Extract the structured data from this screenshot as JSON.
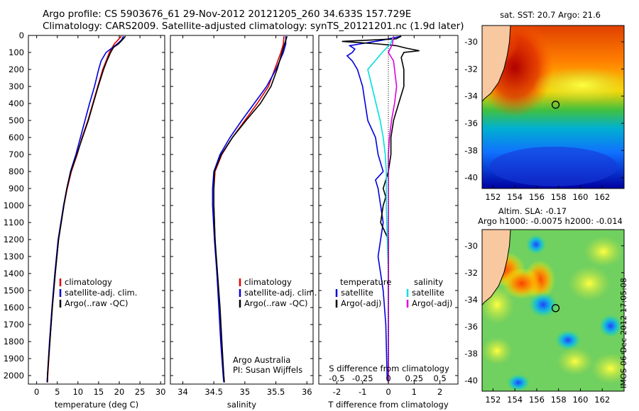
{
  "header": {
    "line1": "Argo profile: CS 5903676_61 29-Nov-2012 20121205_260 34.633S 157.729E",
    "line2": "Climatology: CARS2009. Satellite-adjusted climatology: synTS_20121201.nc (1.9d later)"
  },
  "side_label": "IMOS 06-Dec-2012 17:05:08",
  "colors": {
    "clim": "#e00000",
    "sat": "#0000e0",
    "argo": "#000000",
    "cyan": "#00e0e0",
    "magenta": "#e000e0"
  },
  "chart_data": [
    {
      "type": "line",
      "id": "temp",
      "xlabel": "temperature (deg C)",
      "xlim": [
        -2,
        31
      ],
      "ylim": [
        0,
        2050
      ],
      "xticks": [
        "0",
        "5",
        "10",
        "15",
        "20",
        "25",
        "30"
      ],
      "yticks": [
        "0",
        "100",
        "200",
        "300",
        "400",
        "500",
        "600",
        "700",
        "800",
        "900",
        "1000",
        "1100",
        "1200",
        "1300",
        "1400",
        "1500",
        "1600",
        "1700",
        "1800",
        "1900",
        "2000"
      ],
      "legend": [
        "climatology",
        "satellite-adj. clim.",
        "Argo(..raw -QC)"
      ],
      "series": [
        {
          "name": "climatology",
          "color": "clim",
          "depth": [
            5,
            50,
            100,
            150,
            200,
            300,
            400,
            500,
            600,
            700,
            800,
            900,
            1000,
            1200,
            1400,
            1600,
            1800,
            2000,
            2040
          ],
          "values": [
            20.5,
            18.8,
            17.6,
            16.8,
            16.0,
            14.8,
            13.6,
            12.4,
            11.0,
            9.8,
            8.4,
            7.4,
            6.6,
            5.3,
            4.5,
            3.8,
            3.2,
            2.7,
            2.6
          ]
        },
        {
          "name": "satellite-adj. clim.",
          "color": "sat",
          "depth": [
            5,
            25,
            50,
            100,
            150,
            200,
            300,
            400,
            500,
            600,
            700,
            800,
            900,
            1000,
            1200,
            1400,
            1600,
            1800,
            2000,
            2040
          ],
          "values": [
            21.0,
            20.6,
            19.5,
            16.8,
            15.6,
            15.0,
            14.0,
            12.8,
            11.7,
            10.6,
            9.5,
            8.2,
            7.3,
            6.5,
            5.2,
            4.4,
            3.7,
            3.1,
            2.6,
            2.5
          ]
        },
        {
          "name": "Argo(..raw -QC)",
          "color": "argo",
          "depth": [
            5,
            30,
            50,
            70,
            100,
            150,
            200,
            300,
            400,
            500,
            600,
            700,
            800,
            900,
            1000,
            1200,
            1400,
            1600,
            1800,
            2000,
            2040
          ],
          "values": [
            21.5,
            20.6,
            19.8,
            18.6,
            17.9,
            17.0,
            16.2,
            14.9,
            13.7,
            12.5,
            11.1,
            9.7,
            8.3,
            7.3,
            6.6,
            5.3,
            4.5,
            3.8,
            3.2,
            2.6,
            2.6
          ]
        }
      ]
    },
    {
      "type": "line",
      "id": "sal",
      "xlabel": "salinity",
      "xlim": [
        33.8,
        36.1
      ],
      "ylim": [
        0,
        2050
      ],
      "xticks": [
        "34",
        "34.5",
        "35",
        "35.5",
        "36"
      ],
      "legend": [
        "climatology",
        "satellite-adj. clim.",
        "Argo(..raw -QC)"
      ],
      "note": [
        "Argo Australia",
        "PI: Susan Wijffels"
      ],
      "series": [
        {
          "name": "climatology",
          "color": "clim",
          "depth": [
            5,
            50,
            100,
            200,
            300,
            400,
            500,
            600,
            700,
            800,
            900,
            1000,
            1200,
            1400,
            1600,
            1800,
            2000,
            2040
          ],
          "values": [
            35.63,
            35.62,
            35.58,
            35.48,
            35.38,
            35.2,
            35.0,
            34.8,
            34.63,
            34.52,
            34.5,
            34.5,
            34.52,
            34.55,
            34.59,
            34.62,
            34.66,
            34.67
          ]
        },
        {
          "name": "satellite-adj. clim.",
          "color": "sat",
          "depth": [
            5,
            50,
            100,
            200,
            300,
            400,
            500,
            600,
            700,
            800,
            900,
            1000,
            1200,
            1400,
            1600,
            1800,
            2000,
            2040
          ],
          "values": [
            35.66,
            35.66,
            35.62,
            35.5,
            35.35,
            35.15,
            34.95,
            34.76,
            34.6,
            34.5,
            34.48,
            34.48,
            34.51,
            34.55,
            34.58,
            34.61,
            34.65,
            34.66
          ]
        },
        {
          "name": "Argo(..raw -QC)",
          "color": "argo",
          "depth": [
            5,
            50,
            100,
            200,
            300,
            400,
            500,
            600,
            700,
            800,
            900,
            1000,
            1200,
            1400,
            1600,
            1800,
            2000,
            2040
          ],
          "values": [
            35.68,
            35.64,
            35.6,
            35.52,
            35.42,
            35.25,
            35.02,
            34.8,
            34.62,
            34.51,
            34.5,
            34.5,
            34.52,
            34.56,
            34.6,
            34.63,
            34.66,
            34.67
          ]
        }
      ]
    },
    {
      "type": "line",
      "id": "diff",
      "xlabel": "T difference from climatology",
      "xlabel_top": "S difference from climatology",
      "xlim": [
        -2.7,
        2.7
      ],
      "ylim": [
        0,
        2050
      ],
      "xticks": [
        "-2",
        "-1",
        "0",
        "1",
        "2"
      ],
      "xticks_s": [
        "-0.5",
        "-0.25",
        "0",
        "0.25",
        "0.5"
      ],
      "legend_t": {
        "title": "temperature",
        "items": [
          "satellite",
          "Argo(-adj)"
        ]
      },
      "legend_s": {
        "title": "salinity",
        "items": [
          "satellite",
          "Argo(-adj)"
        ]
      },
      "series": [
        {
          "name": "T satellite",
          "color": "sat",
          "depth": [
            5,
            30,
            60,
            80,
            100,
            120,
            150,
            200,
            300,
            400,
            500,
            600,
            700,
            800,
            850,
            900,
            1000,
            1100,
            1200,
            1300,
            1500,
            1700,
            2000,
            2040
          ],
          "values": [
            0.5,
            -0.3,
            -1.5,
            -1.3,
            -1.4,
            -1.6,
            -1.4,
            -1.2,
            -1.0,
            -0.9,
            -0.8,
            -0.5,
            -0.4,
            -0.2,
            -0.5,
            -0.4,
            -0.3,
            -0.2,
            -0.3,
            -0.4,
            -0.2,
            -0.1,
            -0.05,
            0
          ]
        },
        {
          "name": "T Argo(-adj)",
          "color": "argo",
          "depth": [
            5,
            20,
            35,
            50,
            60,
            75,
            90,
            100,
            130,
            200,
            300,
            400,
            500,
            600,
            700,
            800,
            850,
            900,
            950,
            1000,
            1100,
            1200,
            1400,
            1600,
            2000,
            2040
          ],
          "values": [
            0.5,
            0.3,
            -1.8,
            -0.4,
            0.3,
            0.7,
            1.2,
            0.6,
            0.5,
            0.6,
            0.6,
            0.4,
            0.2,
            0.1,
            0.1,
            0.0,
            -0.1,
            -0.2,
            -0.1,
            -0.2,
            -0.3,
            0.0,
            0.0,
            0.0,
            0.0,
            0.0
          ]
        },
        {
          "name": "S satellite",
          "color": "cyan",
          "depth": [
            5,
            50,
            100,
            200,
            300,
            400,
            500,
            600,
            700,
            800,
            900,
            1000,
            1200,
            1400,
            1600,
            1800,
            2000,
            2040
          ],
          "values": [
            0.05,
            0.02,
            -0.06,
            -0.2,
            -0.16,
            -0.12,
            -0.08,
            -0.05,
            -0.03,
            -0.02,
            -0.02,
            -0.02,
            -0.01,
            0.0,
            0.0,
            0.0,
            0.0,
            0.0
          ]
        },
        {
          "name": "S Argo(-adj)",
          "color": "magenta",
          "depth": [
            5,
            50,
            100,
            150,
            200,
            300,
            400,
            500,
            600,
            700,
            800,
            1000,
            1200,
            1600,
            2000,
            2040
          ],
          "values": [
            0.05,
            0.04,
            0.0,
            0.05,
            0.06,
            0.08,
            0.06,
            0.03,
            0.01,
            0.0,
            0.0,
            0.0,
            0.0,
            0.0,
            0.0,
            0.0
          ]
        }
      ]
    },
    {
      "type": "heatmap",
      "id": "sst",
      "title": "sat. SST: 20.7  Argo: 21.6",
      "xticks": [
        "152",
        "154",
        "156",
        "158",
        "160",
        "162"
      ],
      "yticks": [
        "-30",
        "-32",
        "-34",
        "-36",
        "-38",
        "-40"
      ],
      "xlim": [
        151,
        164
      ],
      "ylim": [
        -40.8,
        -28.8
      ],
      "float": {
        "lon": 157.729,
        "lat": -34.633
      }
    },
    {
      "type": "heatmap",
      "id": "sla",
      "title1": "Altim. SLA: -0.17",
      "title2": "Argo h1000: -0.0075  h2000: -0.014",
      "xticks": [
        "152",
        "154",
        "156",
        "158",
        "160",
        "162"
      ],
      "yticks": [
        "-30",
        "-32",
        "-34",
        "-36",
        "-38",
        "-40"
      ],
      "xlim": [
        151,
        164
      ],
      "ylim": [
        -40.8,
        -28.8
      ],
      "float": {
        "lon": 157.729,
        "lat": -34.633
      }
    }
  ]
}
